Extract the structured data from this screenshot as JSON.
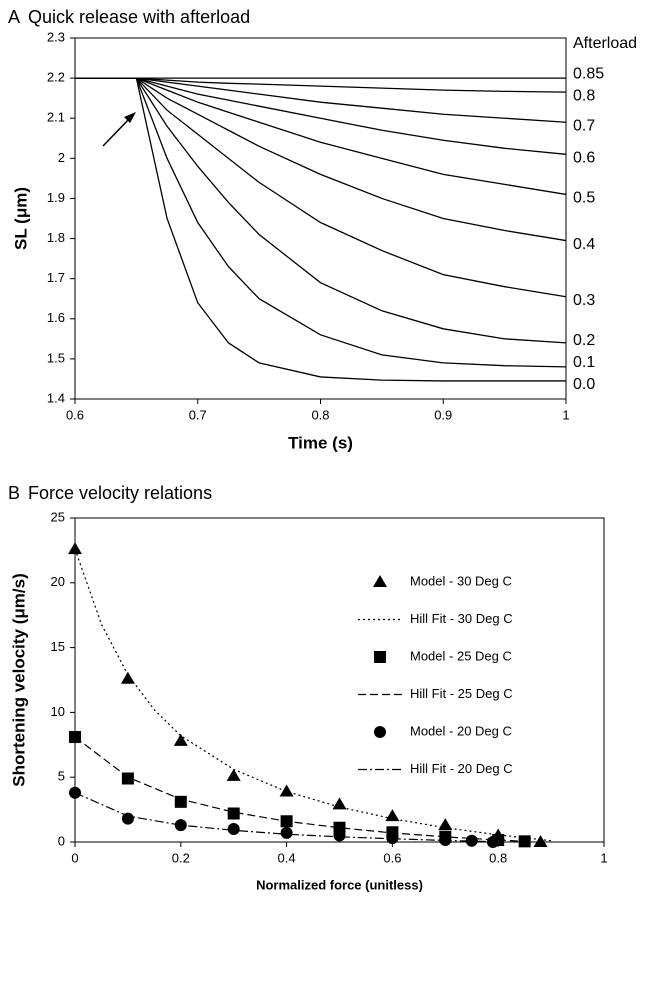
{
  "chart_data": [
    {
      "type": "line",
      "panel_label": "A",
      "title": "Quick release with afterload",
      "x_label": "Time (s)",
      "y_label": "SL (μm)",
      "legend_title": "Afterload",
      "xlim": [
        0.6,
        1
      ],
      "ylim": [
        1.4,
        2.3
      ],
      "xticks": [
        0.6,
        0.7,
        0.8,
        0.9,
        1
      ],
      "yticks": [
        1.4,
        1.5,
        1.6,
        1.7,
        1.8,
        1.9,
        2,
        2.1,
        2.2,
        2.3
      ],
      "x": [
        0.6,
        0.65,
        0.675,
        0.7,
        0.725,
        0.75,
        0.8,
        0.85,
        0.9,
        0.95,
        1
      ],
      "series": [
        {
          "name": "0.85",
          "color": "#000000",
          "values": [
            2.2,
            2.2,
            2.2,
            2.2,
            2.2,
            2.2,
            2.2,
            2.2,
            2.2,
            2.2,
            2.2
          ]
        },
        {
          "name": "0.8",
          "color": "#000000",
          "values": [
            2.2,
            2.2,
            2.195,
            2.19,
            2.187,
            2.185,
            2.18,
            2.175,
            2.17,
            2.167,
            2.165
          ]
        },
        {
          "name": "0.7",
          "color": "#000000",
          "values": [
            2.2,
            2.2,
            2.19,
            2.18,
            2.17,
            2.16,
            2.14,
            2.125,
            2.11,
            2.1,
            2.09
          ]
        },
        {
          "name": "0.6",
          "color": "#000000",
          "values": [
            2.2,
            2.2,
            2.18,
            2.16,
            2.145,
            2.13,
            2.1,
            2.07,
            2.045,
            2.025,
            2.01
          ]
        },
        {
          "name": "0.5",
          "color": "#000000",
          "values": [
            2.2,
            2.2,
            2.17,
            2.14,
            2.115,
            2.09,
            2.04,
            2.0,
            1.96,
            1.935,
            1.91
          ]
        },
        {
          "name": "0.4",
          "color": "#000000",
          "values": [
            2.2,
            2.2,
            2.15,
            2.11,
            2.07,
            2.03,
            1.96,
            1.9,
            1.85,
            1.82,
            1.795
          ]
        },
        {
          "name": "0.3",
          "color": "#000000",
          "values": [
            2.2,
            2.2,
            2.12,
            2.06,
            2.0,
            1.94,
            1.84,
            1.77,
            1.71,
            1.68,
            1.655
          ]
        },
        {
          "name": "0.2",
          "color": "#000000",
          "values": [
            2.2,
            2.2,
            2.08,
            1.98,
            1.89,
            1.81,
            1.69,
            1.62,
            1.575,
            1.55,
            1.54
          ]
        },
        {
          "name": "0.1",
          "color": "#000000",
          "values": [
            2.2,
            2.2,
            2.0,
            1.84,
            1.73,
            1.65,
            1.56,
            1.51,
            1.49,
            1.483,
            1.48
          ]
        },
        {
          "name": "0.0",
          "color": "#000000",
          "values": [
            2.2,
            2.2,
            1.85,
            1.64,
            1.54,
            1.49,
            1.455,
            1.447,
            1.445,
            1.445,
            1.445
          ]
        }
      ]
    },
    {
      "type": "scatter",
      "panel_label": "B",
      "title": "Force velocity relations",
      "x_label": "Normalized force (unitless)",
      "y_label": "Shortening velocity (μm/s)",
      "xlim": [
        0,
        1
      ],
      "ylim": [
        0,
        25
      ],
      "xticks": [
        0,
        0.2,
        0.4,
        0.6,
        0.8,
        1
      ],
      "yticks": [
        0,
        5,
        10,
        15,
        20,
        25
      ],
      "series": [
        {
          "name": "Model - 30 Deg C",
          "color": "#000000",
          "marker": "triangle",
          "x": [
            0,
            0.1,
            0.2,
            0.3,
            0.4,
            0.5,
            0.6,
            0.7,
            0.8,
            0.88
          ],
          "values": [
            22.6,
            12.6,
            7.8,
            5.1,
            3.9,
            2.9,
            2.0,
            1.3,
            0.5,
            0
          ]
        },
        {
          "name": "Hill Fit - 30 Deg C",
          "color": "#000000",
          "dash": "dotted",
          "x": [
            0,
            0.05,
            0.1,
            0.15,
            0.2,
            0.3,
            0.4,
            0.5,
            0.6,
            0.7,
            0.8,
            0.9
          ],
          "values": [
            22.6,
            16.8,
            12.9,
            10.2,
            8.2,
            5.6,
            3.9,
            2.7,
            1.8,
            1.1,
            0.55,
            0.1
          ]
        },
        {
          "name": "Model - 25 Deg C",
          "color": "#000000",
          "marker": "square",
          "x": [
            0,
            0.1,
            0.2,
            0.3,
            0.4,
            0.5,
            0.6,
            0.7,
            0.8,
            0.85
          ],
          "values": [
            8.1,
            4.9,
            3.1,
            2.2,
            1.6,
            1.1,
            0.75,
            0.4,
            0.15,
            0.05
          ]
        },
        {
          "name": "Hill Fit - 25 Deg C",
          "color": "#000000",
          "dash": "dashed",
          "x": [
            0,
            0.1,
            0.2,
            0.3,
            0.4,
            0.5,
            0.6,
            0.7,
            0.8,
            0.85
          ],
          "values": [
            8.1,
            5.0,
            3.3,
            2.3,
            1.6,
            1.1,
            0.7,
            0.4,
            0.15,
            0.05
          ]
        },
        {
          "name": "Model - 20 Deg C",
          "color": "#000000",
          "marker": "circle",
          "x": [
            0,
            0.1,
            0.2,
            0.3,
            0.4,
            0.5,
            0.6,
            0.7,
            0.75,
            0.79
          ],
          "values": [
            3.8,
            1.8,
            1.3,
            1.0,
            0.7,
            0.5,
            0.3,
            0.15,
            0.1,
            0.0
          ]
        },
        {
          "name": "Hill Fit - 20 Deg C",
          "color": "#000000",
          "dash": "dashdot",
          "x": [
            0,
            0.1,
            0.2,
            0.3,
            0.4,
            0.5,
            0.6,
            0.7,
            0.8
          ],
          "values": [
            3.8,
            2.0,
            1.3,
            0.9,
            0.6,
            0.4,
            0.25,
            0.12,
            0.02
          ]
        }
      ]
    }
  ]
}
